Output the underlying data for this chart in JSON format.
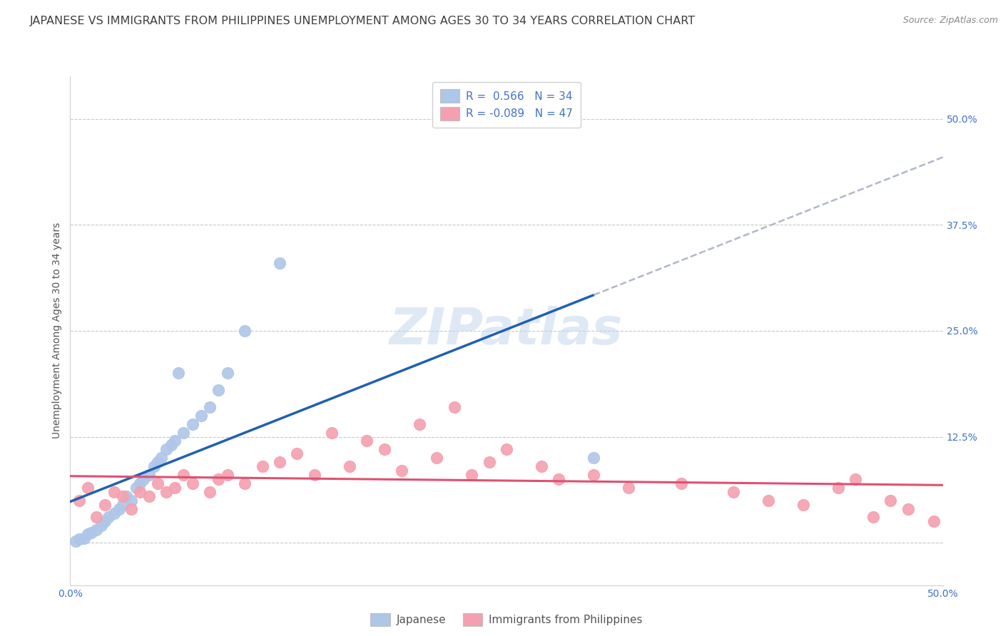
{
  "title": "JAPANESE VS IMMIGRANTS FROM PHILIPPINES UNEMPLOYMENT AMONG AGES 30 TO 34 YEARS CORRELATION CHART",
  "source_text": "Source: ZipAtlas.com",
  "ylabel": "Unemployment Among Ages 30 to 34 years",
  "xlim": [
    0.0,
    50.0
  ],
  "ylim": [
    -5.0,
    55.0
  ],
  "xticks": [
    0.0,
    12.5,
    25.0,
    37.5,
    50.0
  ],
  "yticks": [
    0.0,
    12.5,
    25.0,
    37.5,
    50.0
  ],
  "watermark": "ZIPatlas",
  "background_color": "#ffffff",
  "grid_color": "#c8c8c8",
  "japanese_color": "#aec6e8",
  "philippines_color": "#f4a0b0",
  "blue_line_color": "#2060b0",
  "pink_line_color": "#e05070",
  "dashed_line_color": "#b0b8c8",
  "legend_R1": "R =  0.566",
  "legend_N1": "N = 34",
  "legend_R2": "R = -0.089",
  "legend_N2": "N = 47",
  "label1": "Japanese",
  "label2": "Immigrants from Philippines",
  "japanese_x": [
    0.3,
    0.5,
    0.8,
    1.0,
    1.2,
    1.5,
    1.8,
    2.0,
    2.2,
    2.5,
    2.8,
    3.0,
    3.2,
    3.5,
    3.8,
    4.0,
    4.2,
    4.5,
    4.8,
    5.0,
    5.2,
    5.5,
    5.8,
    6.0,
    6.2,
    6.5,
    7.0,
    7.5,
    8.0,
    8.5,
    9.0,
    10.0,
    12.0,
    30.0
  ],
  "japanese_y": [
    0.2,
    0.4,
    0.5,
    1.0,
    1.2,
    1.5,
    2.0,
    2.5,
    3.0,
    3.5,
    4.0,
    4.5,
    5.5,
    5.0,
    6.5,
    7.0,
    7.5,
    8.0,
    9.0,
    9.5,
    10.0,
    11.0,
    11.5,
    12.0,
    20.0,
    13.0,
    14.0,
    15.0,
    16.0,
    18.0,
    20.0,
    25.0,
    33.0,
    10.0
  ],
  "philippines_x": [
    0.5,
    1.0,
    1.5,
    2.0,
    2.5,
    3.0,
    3.5,
    4.0,
    4.5,
    5.0,
    5.5,
    6.0,
    6.5,
    7.0,
    8.0,
    8.5,
    9.0,
    10.0,
    11.0,
    12.0,
    13.0,
    14.0,
    15.0,
    16.0,
    17.0,
    18.0,
    19.0,
    20.0,
    21.0,
    22.0,
    23.0,
    24.0,
    25.0,
    27.0,
    28.0,
    30.0,
    32.0,
    35.0,
    38.0,
    40.0,
    42.0,
    44.0,
    45.0,
    46.0,
    47.0,
    48.0,
    49.5
  ],
  "philippines_y": [
    5.0,
    6.5,
    3.0,
    4.5,
    6.0,
    5.5,
    4.0,
    6.0,
    5.5,
    7.0,
    6.0,
    6.5,
    8.0,
    7.0,
    6.0,
    7.5,
    8.0,
    7.0,
    9.0,
    9.5,
    10.5,
    8.0,
    13.0,
    9.0,
    12.0,
    11.0,
    8.5,
    14.0,
    10.0,
    16.0,
    8.0,
    9.5,
    11.0,
    9.0,
    7.5,
    8.0,
    6.5,
    7.0,
    6.0,
    5.0,
    4.5,
    6.5,
    7.5,
    3.0,
    5.0,
    4.0,
    2.5
  ],
  "title_fontsize": 11.5,
  "axis_label_fontsize": 10,
  "tick_fontsize": 10,
  "legend_fontsize": 11,
  "watermark_fontsize": 52,
  "source_fontsize": 9
}
